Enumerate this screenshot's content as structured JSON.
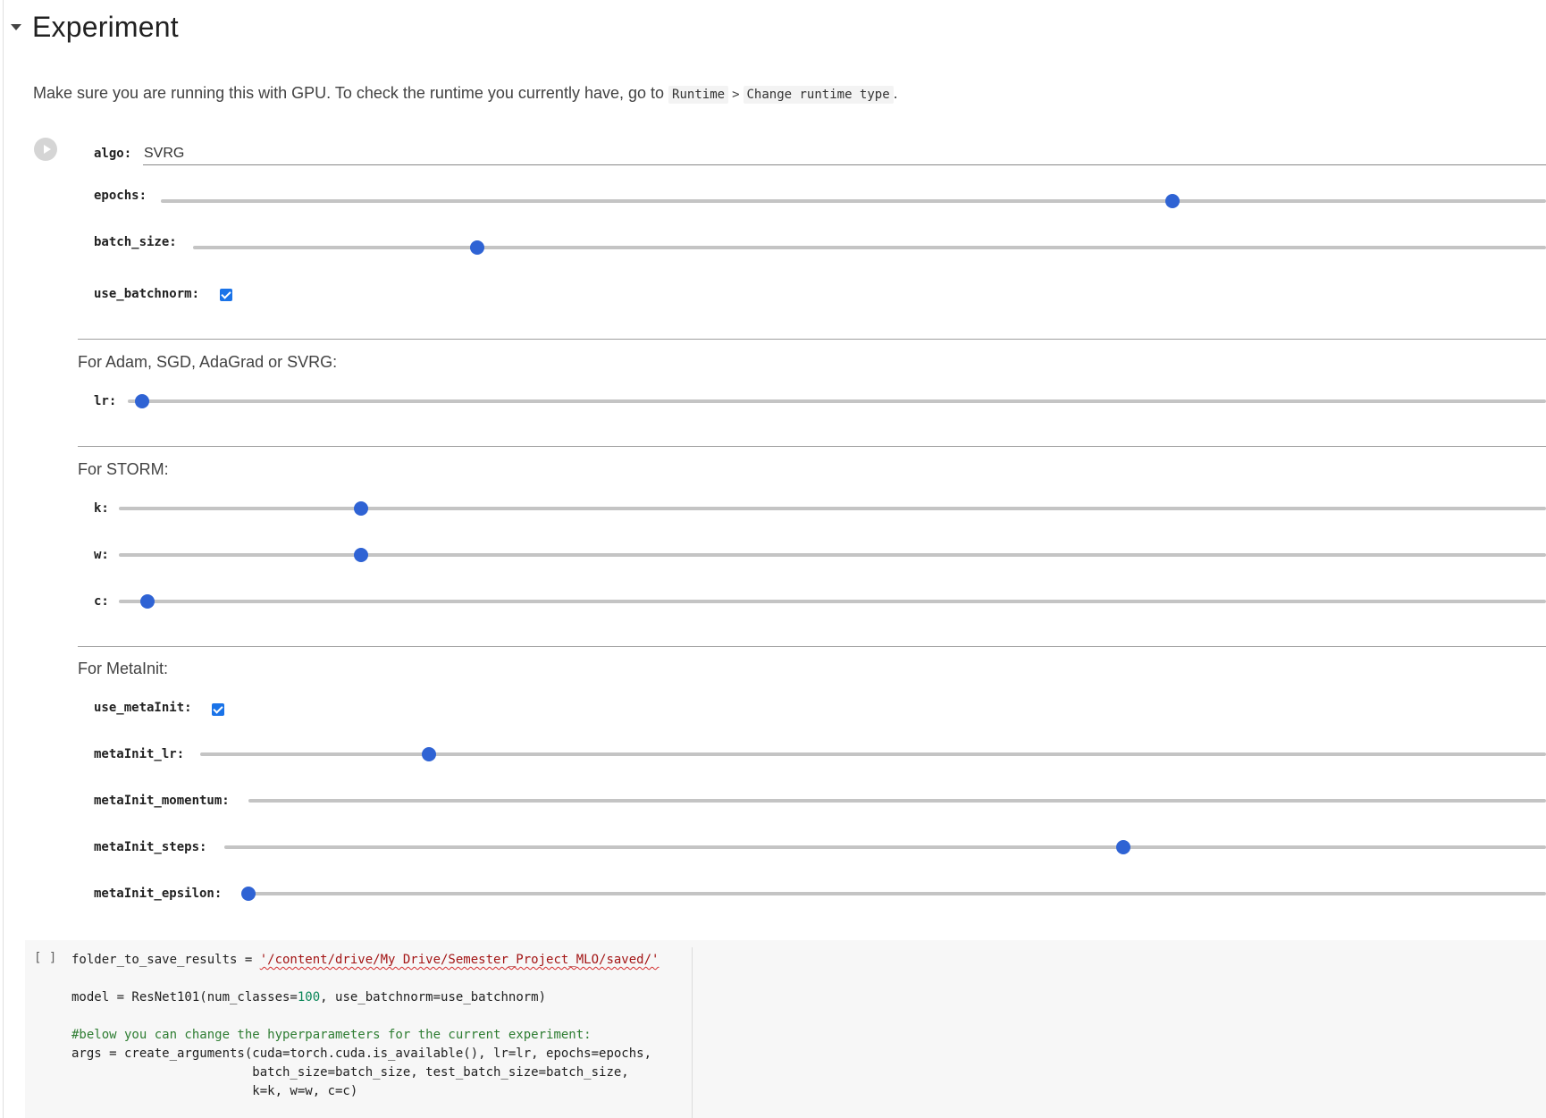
{
  "section": {
    "title": "Experiment"
  },
  "intro": {
    "text": "Make sure you are running this with GPU. To check the runtime you currently have, go to",
    "code1": "Runtime",
    "separator": ">",
    "code2": "Change runtime type",
    "end": "."
  },
  "form": {
    "algo": {
      "label": "algo:",
      "value": "SVRG"
    },
    "epochs": {
      "label": "epochs:",
      "position_pct": 73
    },
    "batch_size": {
      "label": "batch_size:",
      "position_pct": 21
    },
    "use_batchnorm": {
      "label": "use_batchnorm:",
      "checked": true
    },
    "group_optim": {
      "title": "For Adam, SGD, AdaGrad or SVRG:"
    },
    "lr": {
      "label": "lr:",
      "position_pct": 1
    },
    "group_storm": {
      "title": "For STORM:"
    },
    "k": {
      "label": "k:",
      "position_pct": 17
    },
    "w": {
      "label": "w:",
      "position_pct": 17
    },
    "c": {
      "label": "c:",
      "position_pct": 2
    },
    "group_metainit": {
      "title": "For MetaInit:"
    },
    "use_metaInit": {
      "label": "use_metaInit:",
      "checked": true
    },
    "metaInit_lr": {
      "label": "metaInit_lr:",
      "position_pct": 17
    },
    "metaInit_momentum": {
      "label": "metaInit_momentum:",
      "position_pct": null
    },
    "metaInit_steps": {
      "label": "metaInit_steps:",
      "position_pct": 68
    },
    "metaInit_epsilon": {
      "label": "metaInit_epsilon:",
      "position_pct": 0
    }
  },
  "code_cell": {
    "bracket": "[ ]",
    "line1_var": "folder_to_save_results = ",
    "line1_str": "'/content/drive/My Drive/Semester_Project_MLO/saved/'",
    "line3_a": "model = ResNet101(num_classes=",
    "line3_num": "100",
    "line3_b": ", use_batchnorm=use_batchnorm)",
    "line5_comment": "#below you can change the hyperparameters for the current experiment:",
    "line6": "args = create_arguments(cuda=torch.cuda.is_available(), lr=lr, epochs=epochs,",
    "line7": "                        batch_size=batch_size, test_batch_size=batch_size,",
    "line8": "                        k=k, w=w, c=c)"
  }
}
